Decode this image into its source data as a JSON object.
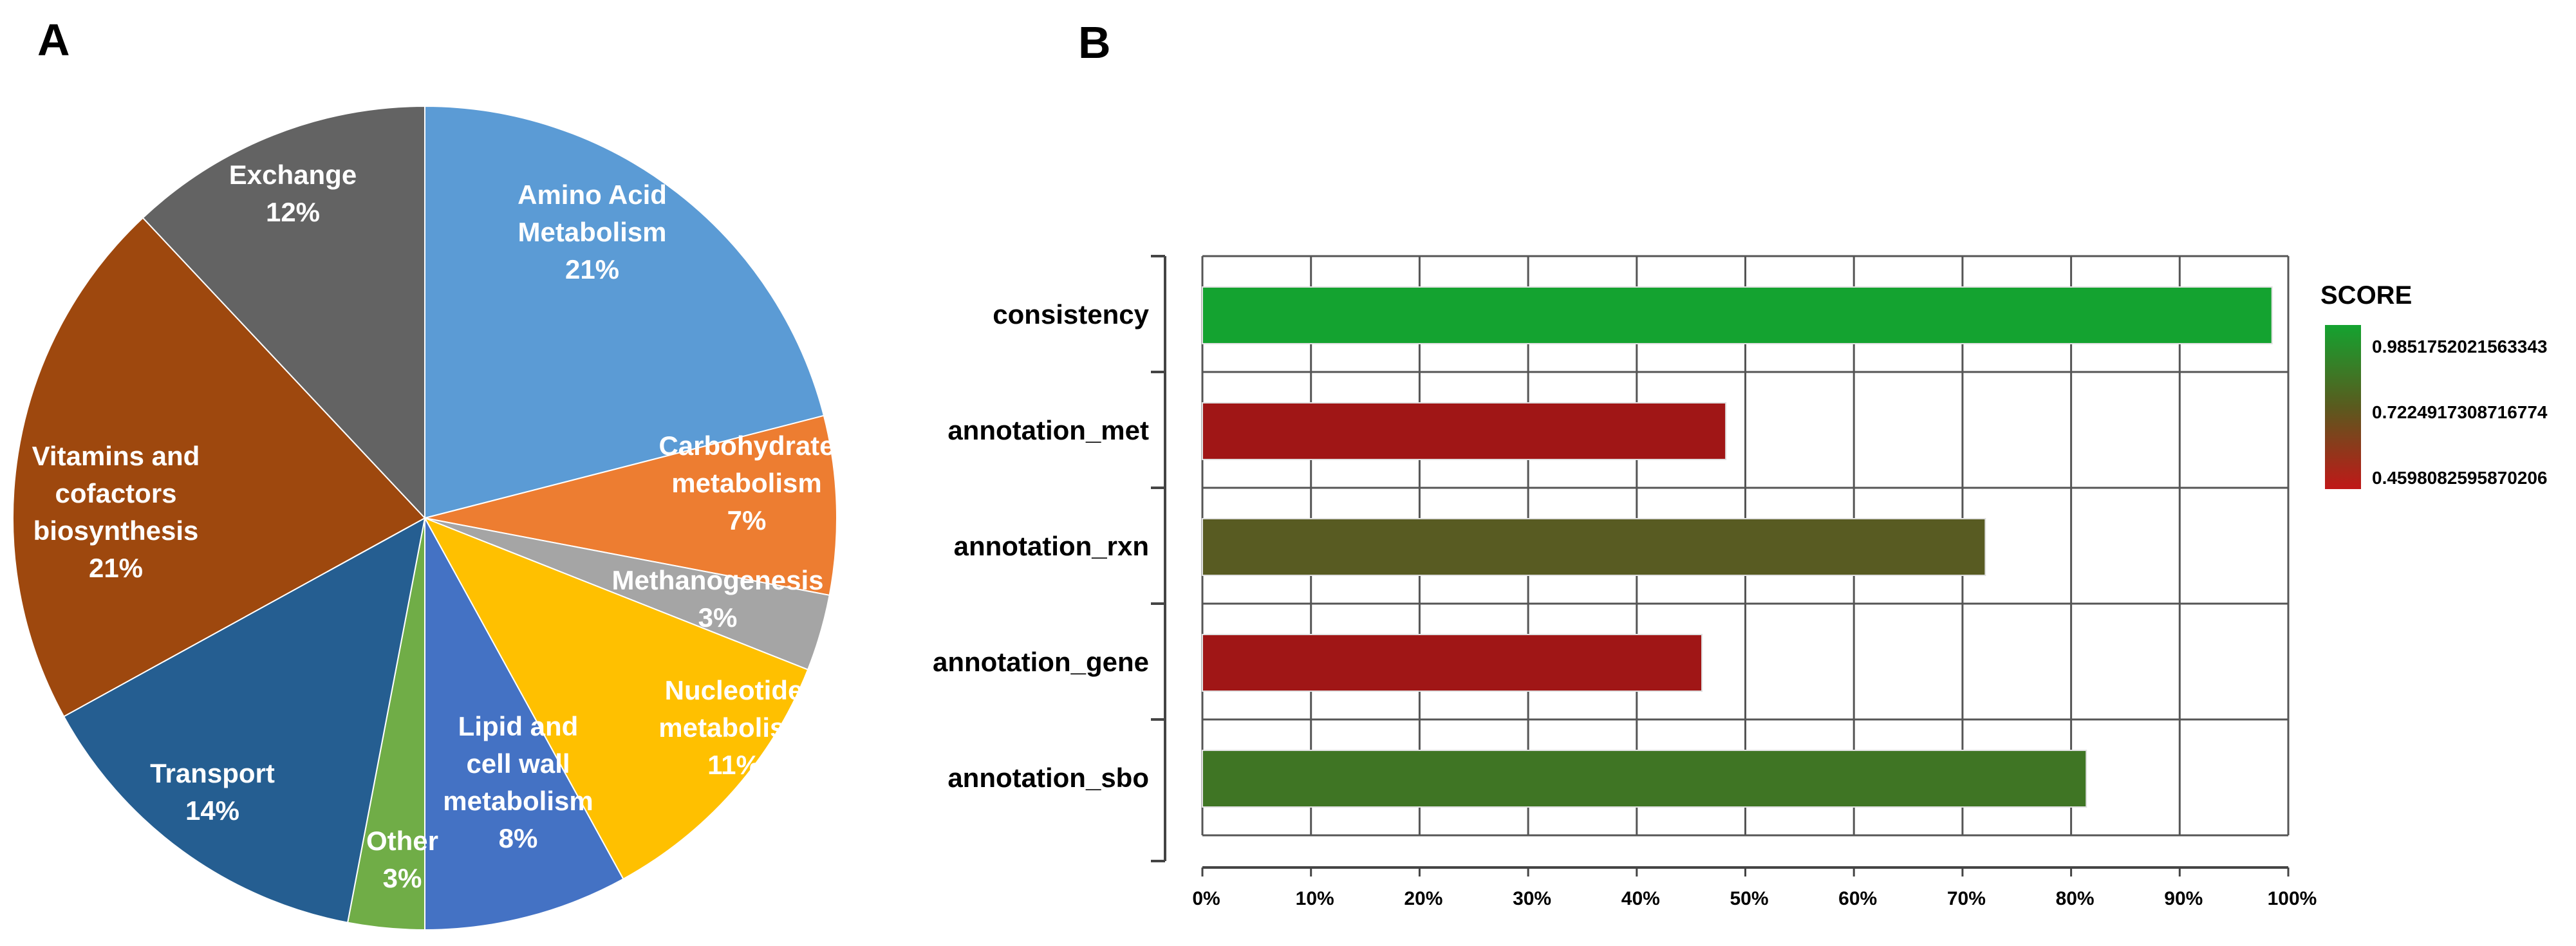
{
  "panel_labels": [
    "A",
    "B"
  ],
  "chart_data": [
    {
      "type": "pie",
      "slices": [
        {
          "label_lines": [
            "Amino Acid",
            "Metabolism",
            "21%"
          ],
          "value": 21,
          "color": "#5B9BD5"
        },
        {
          "label_lines": [
            "Carbohydrate",
            "metabolism",
            "7%"
          ],
          "value": 7,
          "color": "#ED7D31"
        },
        {
          "label_lines": [
            "Methanogenesis",
            "3%"
          ],
          "value": 3,
          "color": "#A5A5A5"
        },
        {
          "label_lines": [
            "Nucleotide",
            "metabolism",
            "11%"
          ],
          "value": 11,
          "color": "#FFC000"
        },
        {
          "label_lines": [
            "Lipid and",
            "cell wall",
            "metabolism",
            "8%"
          ],
          "value": 8,
          "color": "#4472C4"
        },
        {
          "label_lines": [
            "Other",
            "3%"
          ],
          "value": 3,
          "color": "#70AD47"
        },
        {
          "label_lines": [
            "Transport",
            "14%"
          ],
          "value": 14,
          "color": "#255E91"
        },
        {
          "label_lines": [
            "Vitamins and",
            "cofactors",
            "biosynthesis",
            "21%"
          ],
          "value": 21,
          "color": "#9E480E"
        },
        {
          "label_lines": [
            "Exchange",
            "12%"
          ],
          "value": 12,
          "color": "#636363"
        }
      ]
    },
    {
      "type": "bar",
      "orientation": "horizontal",
      "categories": [
        "consistency",
        "annotation_met",
        "annotation_rxn",
        "annotation_gene",
        "annotation_sbo"
      ],
      "values": [
        98.5,
        48.2,
        72.1,
        46,
        81.4
      ],
      "colors": [
        "#14A330",
        "#A01616",
        "#585B22",
        "#A01616",
        "#3F7524"
      ],
      "xlim": [
        0,
        100
      ],
      "xticks": [
        "0%",
        "10%",
        "20%",
        "30%",
        "40%",
        "50%",
        "60%",
        "70%",
        "80%",
        "90%",
        "100%"
      ],
      "grid": true,
      "legend": {
        "title": "SCORE",
        "labels": [
          "0.9851752021563343",
          "0.7224917308716774",
          "0.4598082595870206"
        ],
        "colors": [
          "#14A330",
          "#5A5A1E",
          "#C01818"
        ],
        "placement": "right"
      }
    }
  ]
}
